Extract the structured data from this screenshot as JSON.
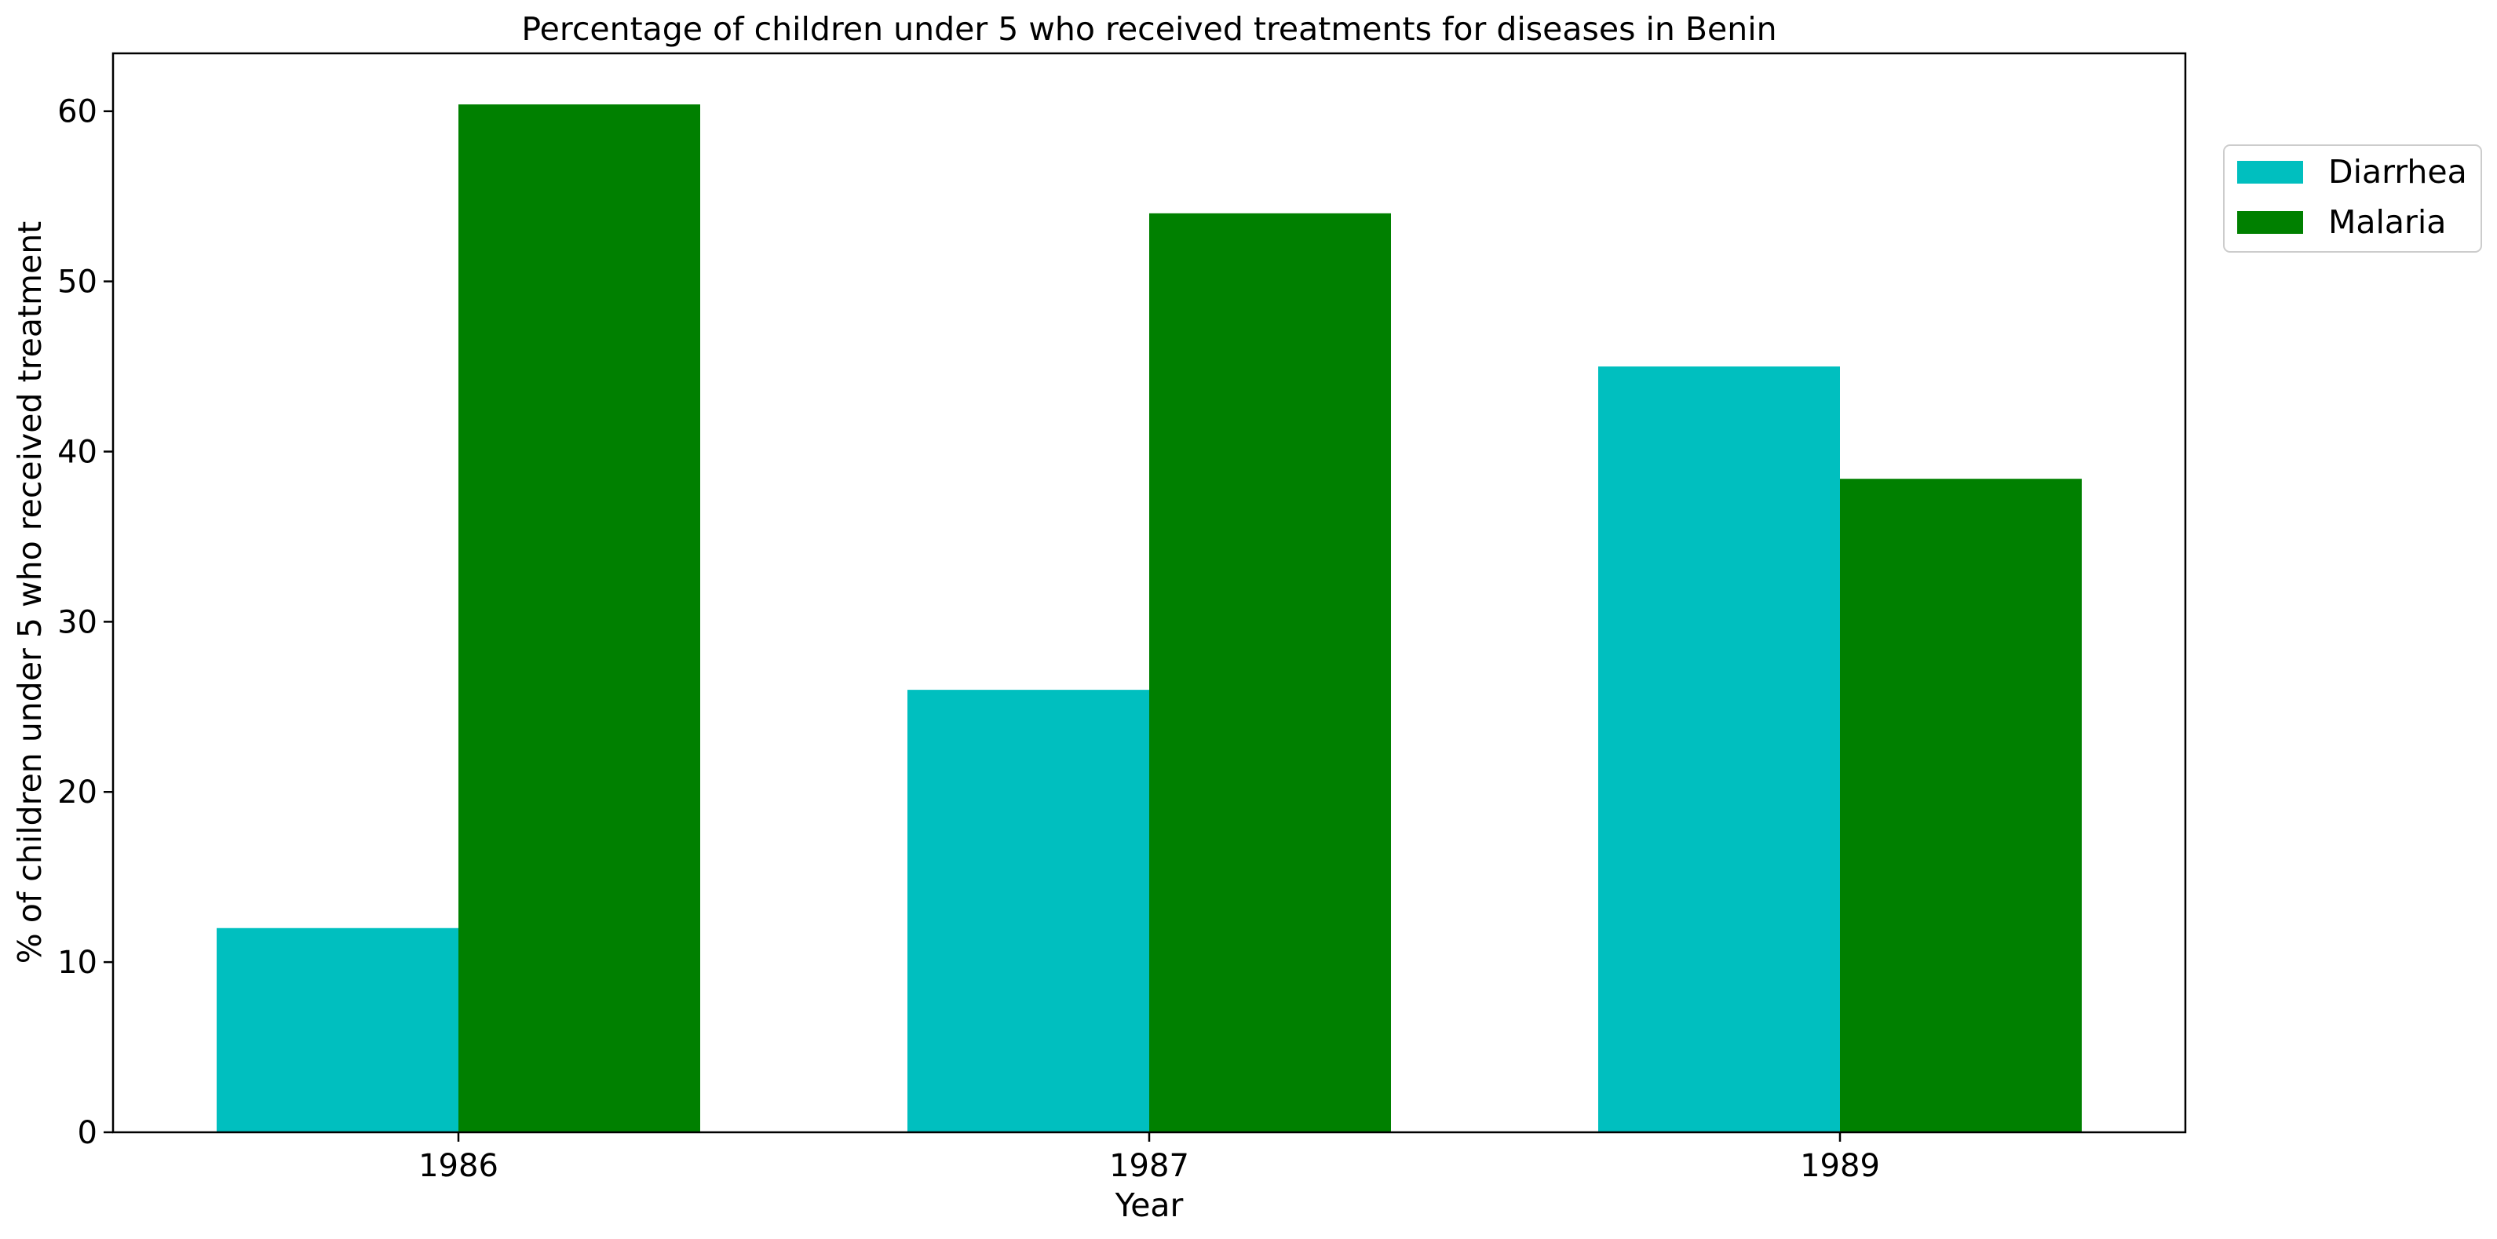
{
  "chart_data": {
    "type": "bar",
    "title": "Percentage of children under 5 who received treatments for diseases in Benin",
    "xlabel": "Year",
    "ylabel": "% of children under 5 who received treatment",
    "categories": [
      "1986",
      "1987",
      "1989"
    ],
    "series": [
      {
        "name": "Diarrhea",
        "color": "#00bfbf",
        "values": [
          12.0,
          26.0,
          45.0
        ]
      },
      {
        "name": "Malaria",
        "color": "#008000",
        "values": [
          60.4,
          54.0,
          38.4
        ]
      }
    ],
    "ylim": [
      0,
      63.4
    ],
    "yticks": [
      0,
      10,
      20,
      30,
      40,
      50,
      60
    ],
    "grid": false,
    "legend": "top-right, outside plot"
  }
}
